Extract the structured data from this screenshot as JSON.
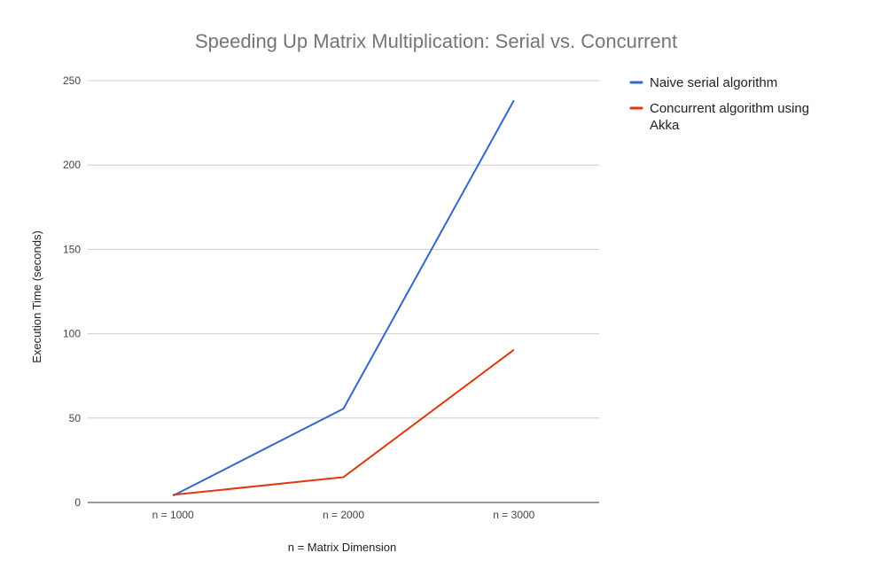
{
  "chart_data": {
    "type": "line",
    "title": "Speeding Up Matrix Multiplication: Serial vs. Concurrent",
    "xlabel": "n = Matrix Dimension",
    "ylabel": "Execution Time (seconds)",
    "categories": [
      "n = 1000",
      "n = 2000",
      "n = 3000"
    ],
    "ylim": [
      0,
      250
    ],
    "yticks": [
      0,
      50,
      100,
      150,
      200,
      250
    ],
    "grid": true,
    "legend_position": "right",
    "series": [
      {
        "name": "Naive serial algorithm",
        "color": "#3366cc",
        "values": [
          4,
          55.6,
          238.3
        ]
      },
      {
        "name": "Concurrent algorithm using",
        "name_line2": "Akka",
        "color": "#dc3912",
        "values": [
          4.5,
          15,
          90.5
        ]
      }
    ]
  }
}
